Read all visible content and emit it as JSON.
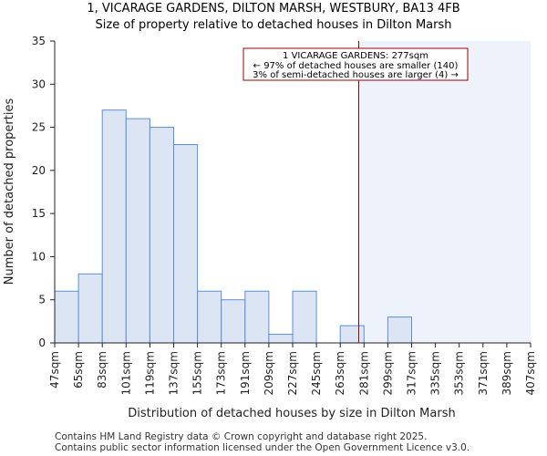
{
  "chart_data": {
    "type": "bar",
    "title": "1, VICARAGE GARDENS, DILTON MARSH, WESTBURY, BA13 4FB",
    "subtitle": "Size of property relative to detached houses in Dilton Marsh",
    "xlabel": "Distribution of detached houses by size in Dilton Marsh",
    "ylabel": "Number of detached properties",
    "bin_edges": [
      47,
      65,
      83,
      101,
      119,
      137,
      155,
      173,
      191,
      209,
      227,
      245,
      263,
      281,
      299,
      317,
      335,
      353,
      371,
      389,
      407
    ],
    "tick_labels": [
      "47sqm",
      "65sqm",
      "83sqm",
      "101sqm",
      "119sqm",
      "137sqm",
      "155sqm",
      "173sqm",
      "191sqm",
      "209sqm",
      "227sqm",
      "245sqm",
      "263sqm",
      "281sqm",
      "299sqm",
      "317sqm",
      "335sqm",
      "353sqm",
      "371sqm",
      "389sqm",
      "407sqm"
    ],
    "values": [
      6,
      8,
      27,
      26,
      25,
      23,
      6,
      5,
      6,
      1,
      6,
      0,
      2,
      0,
      3,
      0,
      0,
      0,
      0,
      0
    ],
    "yticks": [
      0,
      5,
      10,
      15,
      20,
      25,
      30,
      35
    ],
    "ylim": [
      0,
      35
    ],
    "xlim": [
      47,
      407
    ],
    "marker_value": 277,
    "annotation": [
      "1 VICARAGE GARDENS: 277sqm",
      "← 97% of detached houses are smaller (140)",
      "3% of semi-detached houses are larger (4) →"
    ],
    "colors": {
      "bar_fill": "#dbe5f4",
      "bar_edge": "#5b8fd6",
      "highlight_region": "#eef2fb",
      "marker_line": "#990000",
      "annotation_border": "#990000",
      "axis": "#222222"
    }
  },
  "footer": {
    "line1": "Contains HM Land Registry data © Crown copyright and database right 2025.",
    "line2": "Contains public sector information licensed under the Open Government Licence v3.0."
  }
}
